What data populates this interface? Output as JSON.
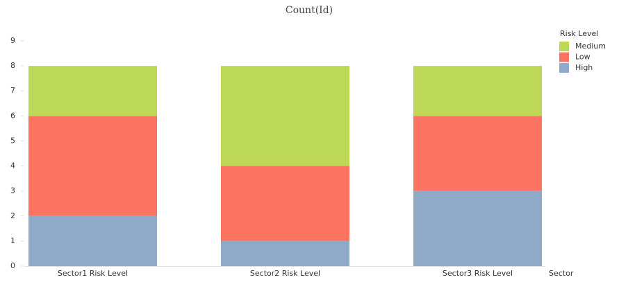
{
  "chart_data": {
    "type": "stacked_bar",
    "title": "Count(Id)",
    "x_label": "Sector",
    "categories": [
      "Sector1 Risk Level",
      "Sector2 Risk Level",
      "Sector3 Risk Level"
    ],
    "series": [
      {
        "name": "High",
        "color": "#8eaac8",
        "values": [
          2,
          1,
          3
        ]
      },
      {
        "name": "Low",
        "color": "#fd7361",
        "values": [
          4,
          3,
          3
        ]
      },
      {
        "name": "Medium",
        "color": "#bcd856",
        "values": [
          2,
          4,
          2
        ]
      }
    ],
    "legend_title": "Risk Level",
    "ylim": [
      0,
      9
    ],
    "yticks": [
      0,
      1,
      2,
      3,
      4,
      5,
      6,
      7,
      8,
      9
    ],
    "grid": false
  }
}
